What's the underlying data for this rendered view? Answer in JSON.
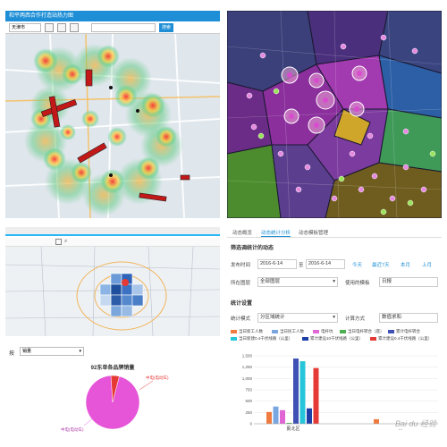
{
  "heatmap_panel": {
    "title": "和平两西合作打造站热力图",
    "city": "天津市",
    "search_placeholder": "",
    "search_button": "搜索"
  },
  "cluster_panel": {},
  "district_panel": {
    "filter_label": "按",
    "filter_value": "销量",
    "chart_title": "92东单各品牌销量",
    "pie_labels": [
      "中电(电动车)",
      "中电(电动车)"
    ]
  },
  "stats_panel": {
    "tabs": [
      "动态概览",
      "动态统计分析",
      "动态模板管理"
    ],
    "section1": "筛选调统计的动态",
    "time_label": "发布时间",
    "date_from": "2016-6-14",
    "date_to": "2016-6-14",
    "date_to_sep": "至",
    "quick_links": [
      "今天",
      "最近7天",
      "本月",
      "上月"
    ],
    "layer_label": "所在图层",
    "layer_value": "全部图层",
    "template_label": "使用的模板",
    "template_value": "日报",
    "section2": "统计设置",
    "mode_label": "统计模式",
    "mode_value": "分区域统计",
    "calc_label": "计算方式",
    "calc_value": "数值求和",
    "legend": [
      {
        "name": "当日新工人数",
        "color": "#f07b3f"
      },
      {
        "name": "当日民工人数",
        "color": "#7aa6e0"
      },
      {
        "name": "电杆坑",
        "color": "#e066d6"
      },
      {
        "name": "当日电杆转合（座）",
        "color": "#4caf50"
      },
      {
        "name": "累计电杆转合",
        "color": "#3f51b5"
      },
      {
        "name": "当日新建0.4千伏线路（公里）",
        "color": "#26c6da"
      },
      {
        "name": "累计建设10千伏线路（公里）",
        "color": "#1e3fa8"
      },
      {
        "name": "累计建设0.4千伏线路（公里）",
        "color": "#e53935"
      }
    ]
  },
  "chart_data": {
    "type": "bar",
    "categories": [
      "蓟北区",
      "..."
    ],
    "series": [
      {
        "name": "当日新工人数",
        "values": [
          260,
          100
        ]
      },
      {
        "name": "当日民工人数",
        "values": [
          380,
          0
        ]
      },
      {
        "name": "电杆坑",
        "values": [
          300,
          0
        ]
      },
      {
        "name": "当日电杆转合（座）",
        "values": [
          20,
          0
        ]
      },
      {
        "name": "累计电杆转合",
        "values": [
          1440,
          0
        ]
      },
      {
        "name": "当日新建0.4千伏线路（公里）",
        "values": [
          1380,
          0
        ]
      },
      {
        "name": "累计建设10千伏线路（公里）",
        "values": [
          340,
          0
        ]
      },
      {
        "name": "累计建设0.4千伏线路（公里）",
        "values": [
          1230,
          0
        ]
      }
    ],
    "yticks": [
      0,
      250,
      500,
      750,
      1000,
      1250,
      1500
    ],
    "ylim": [
      0,
      1500
    ],
    "pie": {
      "values": [
        95,
        5
      ]
    }
  },
  "watermark": "Bai du 经验"
}
